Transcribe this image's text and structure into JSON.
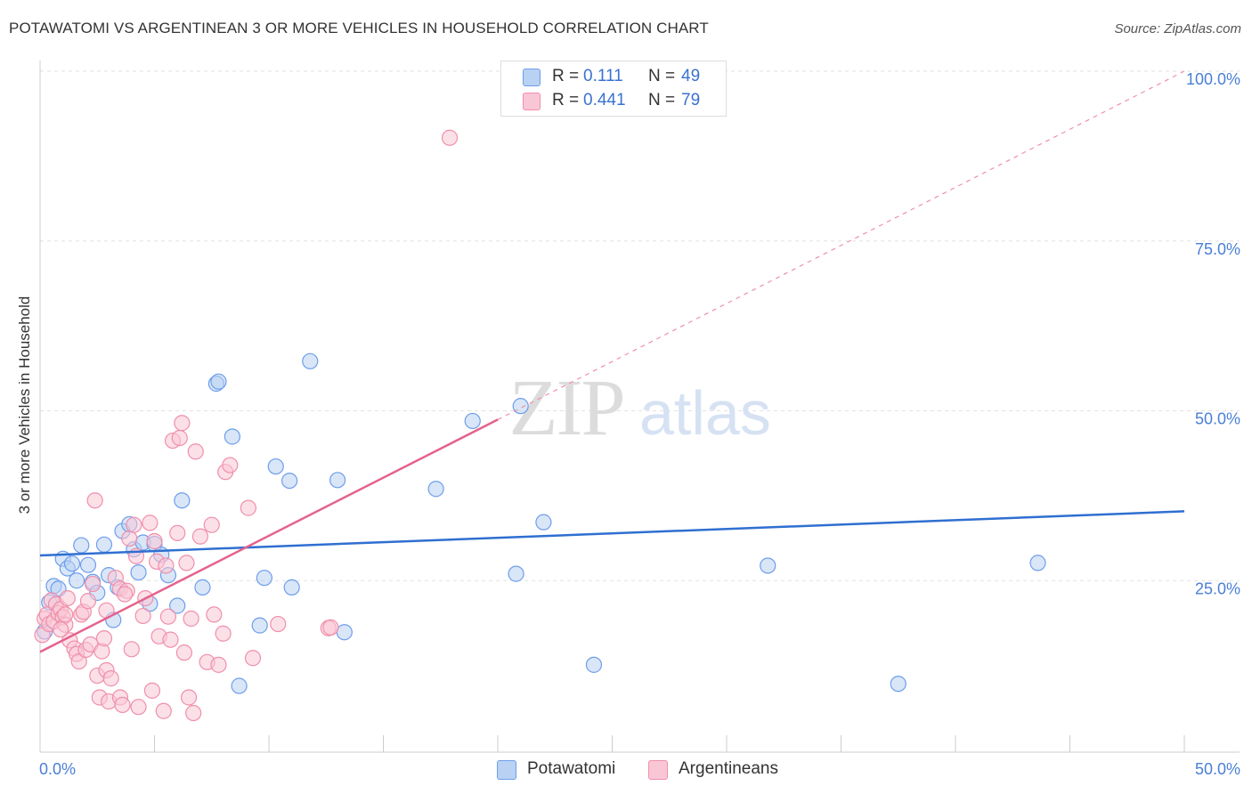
{
  "title": "POTAWATOMI VS ARGENTINEAN 3 OR MORE VEHICLES IN HOUSEHOLD CORRELATION CHART",
  "source": "Source: ZipAtlas.com",
  "watermark": {
    "zip": "ZIP",
    "atlas": "atlas"
  },
  "legend": {
    "r_label": "R =",
    "n_label": "N =",
    "rows": [
      {
        "r": "0.111",
        "n": "49",
        "fill": "#b9d1f2",
        "stroke": "#6d9eea"
      },
      {
        "r": "0.441",
        "n": "79",
        "fill": "#f9c6d6",
        "stroke": "#ef8fab"
      }
    ],
    "value_color": "#3a72d0"
  },
  "chart_data": {
    "type": "scatter",
    "title": "POTAWATOMI VS ARGENTINEAN 3 OR MORE VEHICLES IN HOUSEHOLD CORRELATION CHART",
    "xlabel": "",
    "ylabel": "3 or more Vehicles in Household",
    "xlim": [
      0,
      50
    ],
    "ylim": [
      0,
      100
    ],
    "x_tick_labels": [
      "0.0%",
      "50.0%"
    ],
    "y_tick_labels": [
      "25.0%",
      "50.0%",
      "75.0%",
      "100.0%"
    ],
    "y_tick_values": [
      25,
      50,
      75,
      100
    ],
    "series": [
      {
        "name": "Potawatomi",
        "fill": "#b9d1f2",
        "stroke": "#6d9eea",
        "line_color": "#2f6fd1",
        "R": 0.111,
        "N": 49,
        "trend": {
          "x0": 0,
          "y0": 28.7,
          "x1": 50,
          "y1": 35.2,
          "dashed_ext": false
        },
        "points": [
          [
            0.2,
            17.5
          ],
          [
            0.4,
            21.8
          ],
          [
            0.6,
            24.2
          ],
          [
            0.8,
            23.8
          ],
          [
            1.0,
            28.2
          ],
          [
            1.2,
            26.8
          ],
          [
            1.4,
            27.5
          ],
          [
            1.6,
            25.0
          ],
          [
            1.8,
            30.2
          ],
          [
            2.1,
            27.3
          ],
          [
            2.3,
            24.8
          ],
          [
            2.5,
            23.2
          ],
          [
            2.8,
            30.3
          ],
          [
            3.0,
            25.8
          ],
          [
            3.2,
            19.2
          ],
          [
            3.4,
            24.0
          ],
          [
            3.6,
            32.3
          ],
          [
            3.9,
            33.3
          ],
          [
            4.1,
            29.6
          ],
          [
            4.3,
            26.2
          ],
          [
            4.5,
            30.6
          ],
          [
            4.8,
            21.6
          ],
          [
            5.0,
            30.4
          ],
          [
            5.3,
            28.8
          ],
          [
            5.6,
            25.8
          ],
          [
            6.0,
            21.3
          ],
          [
            6.2,
            36.8
          ],
          [
            7.1,
            24.0
          ],
          [
            7.7,
            54.0
          ],
          [
            7.8,
            54.3
          ],
          [
            8.4,
            46.2
          ],
          [
            8.7,
            9.5
          ],
          [
            9.6,
            18.4
          ],
          [
            9.8,
            25.4
          ],
          [
            10.3,
            41.8
          ],
          [
            10.9,
            39.7
          ],
          [
            11.0,
            24.0
          ],
          [
            11.8,
            57.3
          ],
          [
            13.0,
            39.8
          ],
          [
            13.3,
            17.4
          ],
          [
            17.3,
            38.5
          ],
          [
            18.9,
            48.5
          ],
          [
            20.8,
            26.0
          ],
          [
            21.0,
            50.7
          ],
          [
            22.0,
            33.6
          ],
          [
            31.8,
            27.2
          ],
          [
            37.5,
            9.8
          ],
          [
            43.6,
            27.6
          ],
          [
            24.2,
            12.6
          ]
        ]
      },
      {
        "name": "Argentineans",
        "fill": "#f9c6d6",
        "stroke": "#ef8fab",
        "line_color": "#e5628c",
        "R": 0.441,
        "N": 79,
        "trend": {
          "x0": 0,
          "y0": 14.5,
          "x1": 20,
          "y1": 48.7,
          "dashed_ext": true,
          "x2": 50,
          "y2": 100
        },
        "points": [
          [
            0.1,
            17.0
          ],
          [
            0.2,
            19.4
          ],
          [
            0.3,
            20.0
          ],
          [
            0.4,
            18.6
          ],
          [
            0.5,
            22.1
          ],
          [
            0.6,
            19.0
          ],
          [
            0.7,
            21.5
          ],
          [
            0.8,
            20.2
          ],
          [
            0.9,
            20.8
          ],
          [
            1.0,
            19.6
          ],
          [
            1.1,
            18.5
          ],
          [
            1.2,
            22.4
          ],
          [
            1.3,
            16.2
          ],
          [
            1.5,
            15.0
          ],
          [
            1.6,
            14.2
          ],
          [
            1.7,
            13.1
          ],
          [
            1.8,
            20.0
          ],
          [
            1.9,
            20.4
          ],
          [
            2.0,
            14.8
          ],
          [
            2.1,
            22.0
          ],
          [
            2.2,
            15.6
          ],
          [
            2.3,
            24.5
          ],
          [
            2.4,
            36.8
          ],
          [
            2.5,
            11.0
          ],
          [
            2.6,
            7.8
          ],
          [
            2.7,
            14.6
          ],
          [
            2.8,
            16.5
          ],
          [
            2.9,
            11.8
          ],
          [
            3.0,
            7.2
          ],
          [
            3.1,
            10.6
          ],
          [
            3.3,
            25.4
          ],
          [
            3.5,
            23.8
          ],
          [
            3.5,
            7.8
          ],
          [
            3.6,
            6.7
          ],
          [
            3.8,
            23.5
          ],
          [
            3.9,
            31.2
          ],
          [
            4.0,
            14.9
          ],
          [
            4.1,
            33.2
          ],
          [
            4.2,
            28.6
          ],
          [
            4.3,
            6.4
          ],
          [
            4.5,
            19.8
          ],
          [
            4.6,
            22.4
          ],
          [
            4.8,
            33.5
          ],
          [
            4.9,
            8.8
          ],
          [
            5.1,
            27.8
          ],
          [
            5.2,
            16.8
          ],
          [
            5.4,
            5.8
          ],
          [
            5.5,
            27.2
          ],
          [
            5.6,
            19.7
          ],
          [
            5.7,
            16.3
          ],
          [
            5.8,
            45.6
          ],
          [
            6.0,
            32.0
          ],
          [
            6.1,
            46.0
          ],
          [
            6.2,
            48.2
          ],
          [
            6.3,
            14.4
          ],
          [
            6.4,
            27.6
          ],
          [
            6.5,
            7.8
          ],
          [
            6.6,
            19.4
          ],
          [
            6.7,
            5.5
          ],
          [
            6.8,
            44.0
          ],
          [
            7.0,
            31.5
          ],
          [
            7.3,
            13.0
          ],
          [
            7.5,
            33.2
          ],
          [
            7.6,
            20.0
          ],
          [
            7.8,
            12.6
          ],
          [
            8.0,
            17.2
          ],
          [
            8.1,
            41.0
          ],
          [
            8.3,
            42.0
          ],
          [
            9.1,
            35.7
          ],
          [
            9.3,
            13.6
          ],
          [
            10.4,
            18.6
          ],
          [
            12.6,
            18.0
          ],
          [
            12.7,
            18.1
          ],
          [
            17.9,
            90.2
          ],
          [
            1.1,
            20.0
          ],
          [
            0.9,
            17.8
          ],
          [
            2.9,
            20.6
          ],
          [
            3.7,
            23.0
          ],
          [
            5.0,
            30.8
          ]
        ]
      }
    ]
  }
}
